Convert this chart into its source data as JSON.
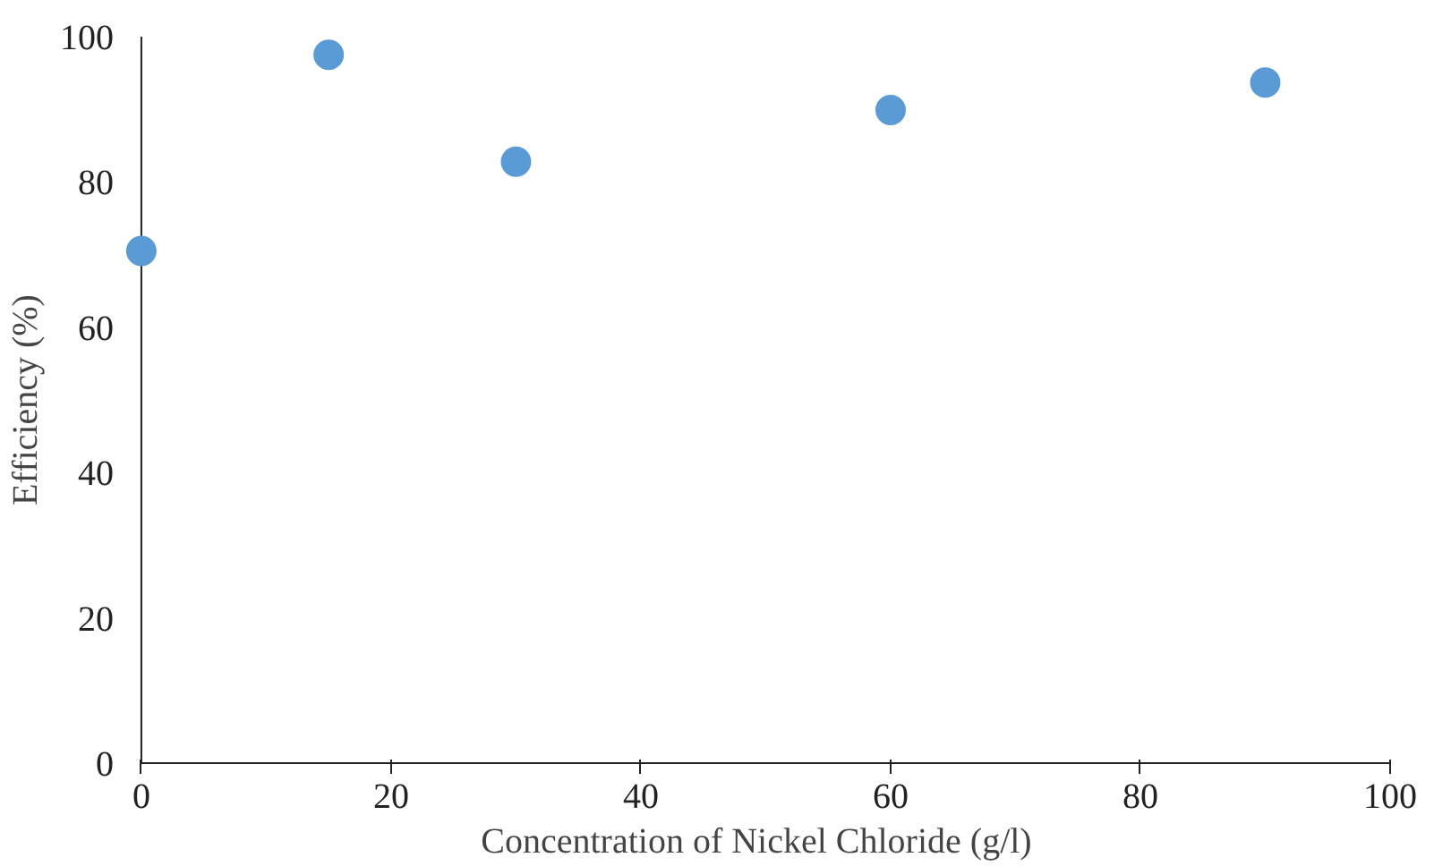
{
  "chart_data": {
    "type": "scatter",
    "xlabel": "Concentration of Nickel Chloride (g/l)",
    "ylabel": "Efficiency (%)",
    "x": [
      0,
      15,
      30,
      60,
      90
    ],
    "series": [
      {
        "color": "#5b9bd5",
        "values": [
          70.5,
          97.5,
          82.8,
          89.9,
          93.7
        ]
      }
    ],
    "xlim": [
      0,
      100
    ],
    "xticks": [
      0,
      20,
      40,
      60,
      80,
      100
    ],
    "ylim": [
      0,
      100
    ],
    "yticks": [
      0,
      20,
      40,
      60,
      80,
      100
    ],
    "grid": false,
    "marker": "circle"
  }
}
